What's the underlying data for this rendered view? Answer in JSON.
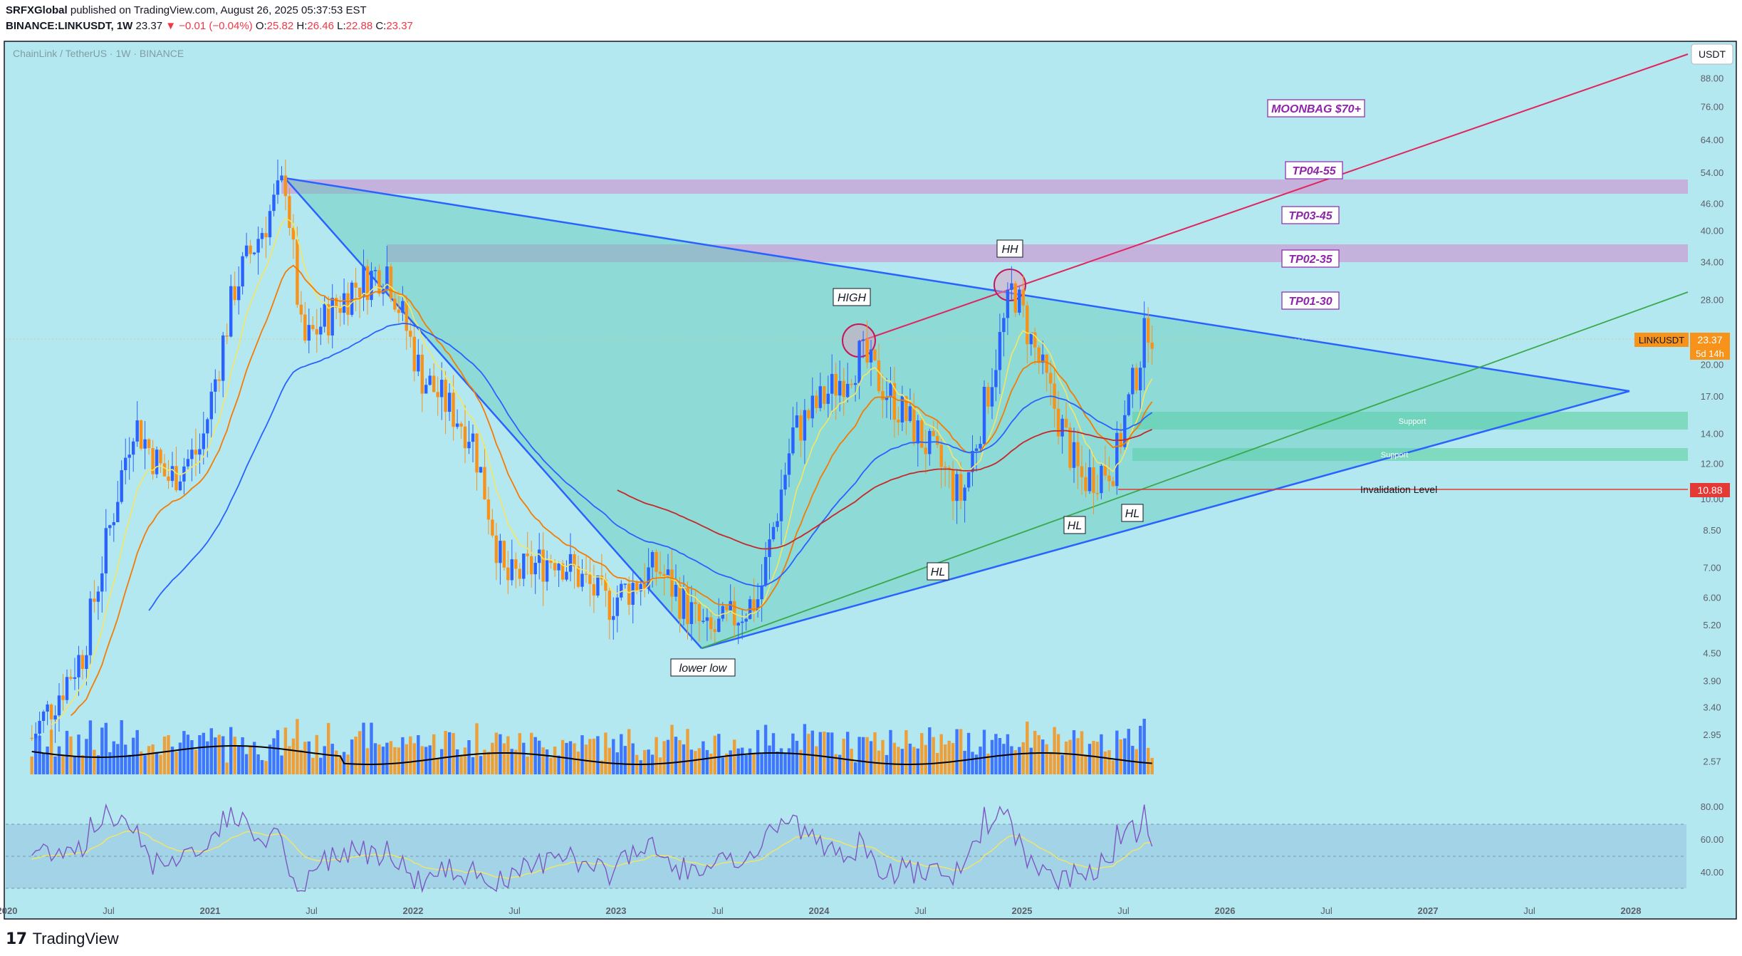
{
  "header": {
    "author": "SRFXGlobal",
    "published": "published on TradingView.com, August 26, 2025 05:37:53 EST",
    "symbol": "BINANCE:LINKUSDT, 1W",
    "last": "23.37",
    "change": "▼ −0.01 (−0.04%)",
    "o_label": "O:",
    "o": "25.82",
    "h_label": "H:",
    "h": "26.46",
    "l_label": "L:",
    "l": "22.88",
    "c_label": "C:",
    "c": "23.37"
  },
  "chart_title": "ChainLink / TetherUS · 1W · BINANCE",
  "currency_badge": "USDT",
  "price_tag": {
    "symbol": "LINKUSDT",
    "price": "23.37",
    "countdown": "5d 14h"
  },
  "invalidation": {
    "label": "Invalidation Level",
    "price": "10.88"
  },
  "annotations": {
    "moonbag": "MOONBAG $70+",
    "tp4": "TP04-55",
    "tp3": "TP03-45",
    "tp2": "TP02-35",
    "tp1": "TP01-30",
    "hh": "HH",
    "high": "HIGH",
    "hl1": "HL",
    "hl2": "HL",
    "hl3": "HL",
    "lower_low": "lower low",
    "support1": "Support",
    "support2": "Support"
  },
  "footer": {
    "brand": "TradingView"
  },
  "colors": {
    "background": "#b4e8f0",
    "up": "#2962ff",
    "down": "#f7931a",
    "triangle": "#2962ff",
    "pink_line": "#e0245e",
    "green_line": "#3aa84b",
    "tp_zone": "#c8a8d8",
    "support_zone": "#6fd6b0",
    "invalidation": "#e53935"
  },
  "chart_data": {
    "type": "candlestick",
    "scale": "log",
    "y_ticks": [
      "88.00",
      "76.00",
      "64.00",
      "54.00",
      "46.00",
      "40.00",
      "34.00",
      "28.00",
      "23.37",
      "20.00",
      "17.00",
      "14.00",
      "12.00",
      "10.00",
      "8.50",
      "7.00",
      "6.00",
      "5.20",
      "4.50",
      "3.90",
      "3.40",
      "2.95",
      "2.57"
    ],
    "x_ticks": [
      "2020",
      "Jul",
      "2021",
      "Jul",
      "2022",
      "Jul",
      "2023",
      "Jul",
      "2024",
      "Jul",
      "2025",
      "Jul",
      "2026",
      "Jul",
      "2027",
      "Jul",
      "2028"
    ],
    "price_path": [
      [
        "2020-02",
        2.9
      ],
      [
        "2020-05",
        4.5
      ],
      [
        "2020-08",
        15.0
      ],
      [
        "2020-10",
        11.0
      ],
      [
        "2020-12",
        13.0
      ],
      [
        "2021-02",
        30.0
      ],
      [
        "2021-05",
        52.0
      ],
      [
        "2021-06",
        22.0
      ],
      [
        "2021-09",
        30.0
      ],
      [
        "2021-11",
        33.0
      ],
      [
        "2022-01",
        19.0
      ],
      [
        "2022-04",
        14.0
      ],
      [
        "2022-06",
        6.5
      ],
      [
        "2022-09",
        7.5
      ],
      [
        "2022-12",
        5.8
      ],
      [
        "2023-03",
        7.0
      ],
      [
        "2023-06",
        4.9
      ],
      [
        "2023-09",
        6.0
      ],
      [
        "2023-11",
        14.0
      ],
      [
        "2024-03",
        21.0
      ],
      [
        "2024-07",
        13.0
      ],
      [
        "2024-09",
        10.0
      ],
      [
        "2024-12",
        30.0
      ],
      [
        "2025-02",
        18.0
      ],
      [
        "2025-04",
        11.0
      ],
      [
        "2025-06",
        12.0
      ],
      [
        "2025-08",
        25.0
      ],
      [
        "2025-08-26",
        23.37
      ]
    ],
    "levels": {
      "tp1": 30,
      "tp2": 35,
      "tp3": 45,
      "tp4": 55,
      "moonbag": 70,
      "invalidation": 10.88,
      "current": 23.37
    },
    "indicators": [
      "EMA fast (yellow)",
      "EMA mid (orange)",
      "EMA slow (blue)",
      "SMA (red)",
      "Volume",
      "RSI"
    ],
    "rsi_ticks": [
      "80.00",
      "60.00",
      "40.00"
    ]
  }
}
